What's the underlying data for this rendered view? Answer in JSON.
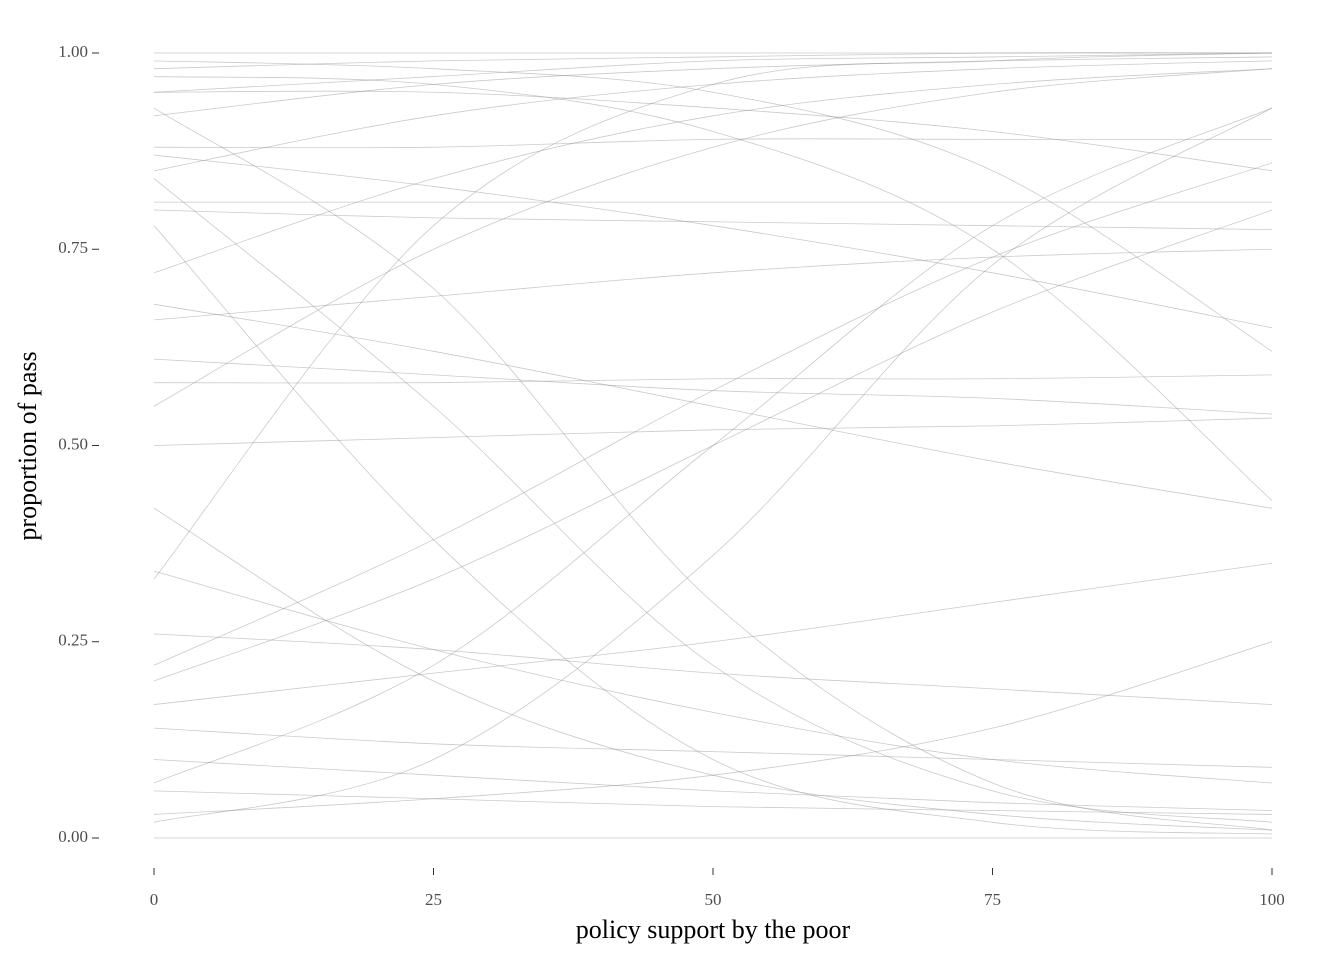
{
  "chart_data": {
    "type": "line",
    "x_label": "policy support by the poor",
    "y_label": "proportion of pass",
    "x": [
      0,
      25,
      50,
      75,
      100
    ],
    "line_color": "#8a8a8a",
    "xlim": [
      0,
      100
    ],
    "xticks": [
      0,
      25,
      50,
      75,
      100
    ],
    "ylim": [
      0,
      1
    ],
    "yticks": [
      {
        "value": 0,
        "label": "0.00"
      },
      {
        "value": 0.25,
        "label": "0.25"
      },
      {
        "value": 0.5,
        "label": "0.50"
      },
      {
        "value": 0.75,
        "label": "0.75"
      },
      {
        "value": 1,
        "label": "1.00"
      }
    ],
    "grid": false,
    "series": [
      {
        "values": [
          1.0,
          1.0,
          1.0,
          1.0,
          1.0
        ]
      },
      {
        "values": [
          0.0,
          0.0,
          0.0,
          0.0,
          0.0
        ]
      },
      {
        "values": [
          0.98,
          0.99,
          0.995,
          1.0,
          1.0
        ]
      },
      {
        "values": [
          0.95,
          0.97,
          0.99,
          0.995,
          1.0
        ]
      },
      {
        "values": [
          0.92,
          0.96,
          0.98,
          0.99,
          0.995
        ]
      },
      {
        "values": [
          0.88,
          0.88,
          0.89,
          0.89,
          0.89
        ]
      },
      {
        "values": [
          0.8,
          0.79,
          0.785,
          0.78,
          0.775
        ]
      },
      {
        "values": [
          0.81,
          0.81,
          0.81,
          0.81,
          0.81
        ]
      },
      {
        "values": [
          0.66,
          0.69,
          0.72,
          0.74,
          0.75
        ]
      },
      {
        "values": [
          0.61,
          0.59,
          0.57,
          0.56,
          0.54
        ]
      },
      {
        "values": [
          0.58,
          0.58,
          0.585,
          0.585,
          0.59
        ]
      },
      {
        "values": [
          0.5,
          0.51,
          0.52,
          0.525,
          0.535
        ]
      },
      {
        "values": [
          0.33,
          0.78,
          0.96,
          0.99,
          1.0
        ]
      },
      {
        "values": [
          0.2,
          0.33,
          0.5,
          0.67,
          0.8
        ]
      },
      {
        "values": [
          0.22,
          0.38,
          0.57,
          0.74,
          0.86
        ]
      },
      {
        "values": [
          0.07,
          0.22,
          0.5,
          0.78,
          0.93
        ]
      },
      {
        "values": [
          0.02,
          0.1,
          0.36,
          0.73,
          0.93
        ]
      },
      {
        "values": [
          0.84,
          0.55,
          0.22,
          0.06,
          0.02
        ]
      },
      {
        "values": [
          0.93,
          0.7,
          0.3,
          0.07,
          0.01
        ]
      },
      {
        "values": [
          0.78,
          0.38,
          0.1,
          0.02,
          0.005
        ]
      },
      {
        "values": [
          0.26,
          0.24,
          0.21,
          0.19,
          0.17
        ]
      },
      {
        "values": [
          0.34,
          0.24,
          0.16,
          0.1,
          0.07
        ]
      },
      {
        "values": [
          0.14,
          0.12,
          0.11,
          0.1,
          0.09
        ]
      },
      {
        "values": [
          0.1,
          0.08,
          0.06,
          0.045,
          0.035
        ]
      },
      {
        "values": [
          0.42,
          0.2,
          0.08,
          0.03,
          0.01
        ]
      },
      {
        "values": [
          0.85,
          0.92,
          0.96,
          0.98,
          0.99
        ]
      },
      {
        "values": [
          0.95,
          0.95,
          0.93,
          0.9,
          0.85
        ]
      },
      {
        "values": [
          0.97,
          0.96,
          0.9,
          0.75,
          0.43
        ]
      },
      {
        "values": [
          0.99,
          0.98,
          0.95,
          0.85,
          0.62
        ]
      },
      {
        "values": [
          0.55,
          0.75,
          0.88,
          0.95,
          0.98
        ]
      },
      {
        "values": [
          0.17,
          0.21,
          0.25,
          0.3,
          0.35
        ]
      },
      {
        "values": [
          0.03,
          0.05,
          0.08,
          0.14,
          0.25
        ]
      },
      {
        "values": [
          0.06,
          0.05,
          0.04,
          0.035,
          0.03
        ]
      },
      {
        "values": [
          0.72,
          0.84,
          0.92,
          0.96,
          0.98
        ]
      },
      {
        "values": [
          0.87,
          0.83,
          0.78,
          0.72,
          0.65
        ]
      },
      {
        "values": [
          0.68,
          0.62,
          0.55,
          0.48,
          0.42
        ]
      }
    ]
  }
}
